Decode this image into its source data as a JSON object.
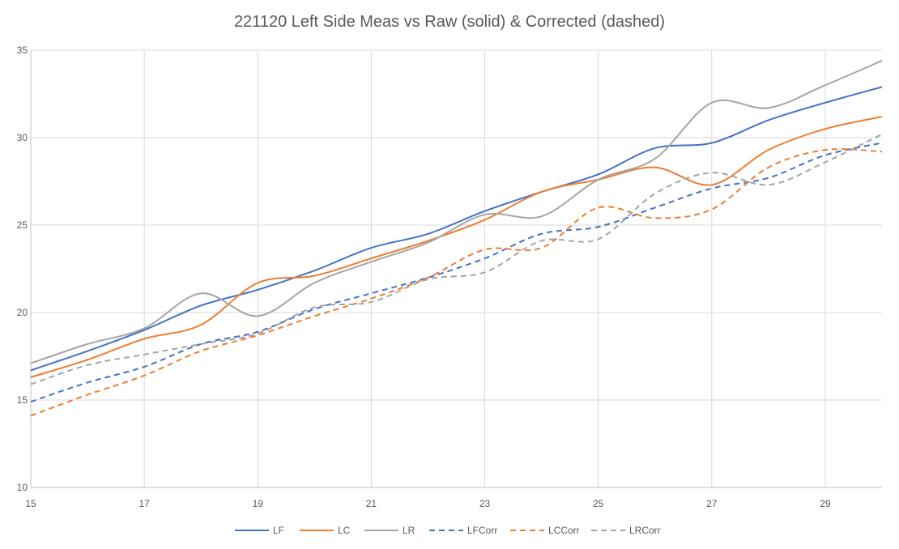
{
  "chart_data": {
    "type": "line",
    "title": "221120 Left Side Meas vs Raw (solid) & Corrected (dashed)",
    "xlabel": "",
    "ylabel": "",
    "xlim": [
      15,
      30
    ],
    "ylim": [
      10,
      35
    ],
    "x_ticks": [
      15,
      17,
      19,
      21,
      23,
      25,
      27,
      29
    ],
    "y_ticks": [
      10,
      15,
      20,
      25,
      30,
      35
    ],
    "grid": true,
    "legend_position": "bottom",
    "x": [
      15,
      16,
      17,
      18,
      19,
      20,
      21,
      22,
      23,
      24,
      25,
      26,
      27,
      28,
      29,
      30
    ],
    "series": [
      {
        "name": "LF",
        "color": "#4472C4",
        "dashed": false,
        "values": [
          16.7,
          17.8,
          19.0,
          20.4,
          21.3,
          22.4,
          23.7,
          24.5,
          25.8,
          26.9,
          27.9,
          29.4,
          29.7,
          31.0,
          32.0,
          32.9
        ]
      },
      {
        "name": "LC",
        "color": "#ED7D31",
        "dashed": false,
        "values": [
          16.3,
          17.3,
          18.5,
          19.3,
          21.7,
          22.1,
          23.1,
          24.1,
          25.3,
          26.9,
          27.6,
          28.3,
          27.3,
          29.3,
          30.5,
          31.2
        ]
      },
      {
        "name": "LR",
        "color": "#A5A5A5",
        "dashed": false,
        "values": [
          17.1,
          18.2,
          19.1,
          21.1,
          19.8,
          21.7,
          22.9,
          24.0,
          25.6,
          25.5,
          27.6,
          28.8,
          32.0,
          31.7,
          33.0,
          34.4
        ]
      },
      {
        "name": "LFCorr",
        "color": "#4472C4",
        "dashed": true,
        "values": [
          14.9,
          16.0,
          16.9,
          18.2,
          18.9,
          20.2,
          21.1,
          22.0,
          23.1,
          24.5,
          24.9,
          26.0,
          27.1,
          27.7,
          29.0,
          29.7
        ]
      },
      {
        "name": "LCCorr",
        "color": "#ED7D31",
        "dashed": true,
        "values": [
          14.1,
          15.3,
          16.4,
          17.8,
          18.7,
          19.8,
          20.8,
          22.0,
          23.6,
          23.7,
          26.0,
          25.4,
          25.9,
          28.3,
          29.3,
          29.2
        ]
      },
      {
        "name": "LRCorr",
        "color": "#A5A5A5",
        "dashed": true,
        "values": [
          15.9,
          17.0,
          17.6,
          18.2,
          18.8,
          20.3,
          20.6,
          21.9,
          22.3,
          24.1,
          24.2,
          26.8,
          28.0,
          27.3,
          28.6,
          30.2
        ]
      }
    ]
  }
}
